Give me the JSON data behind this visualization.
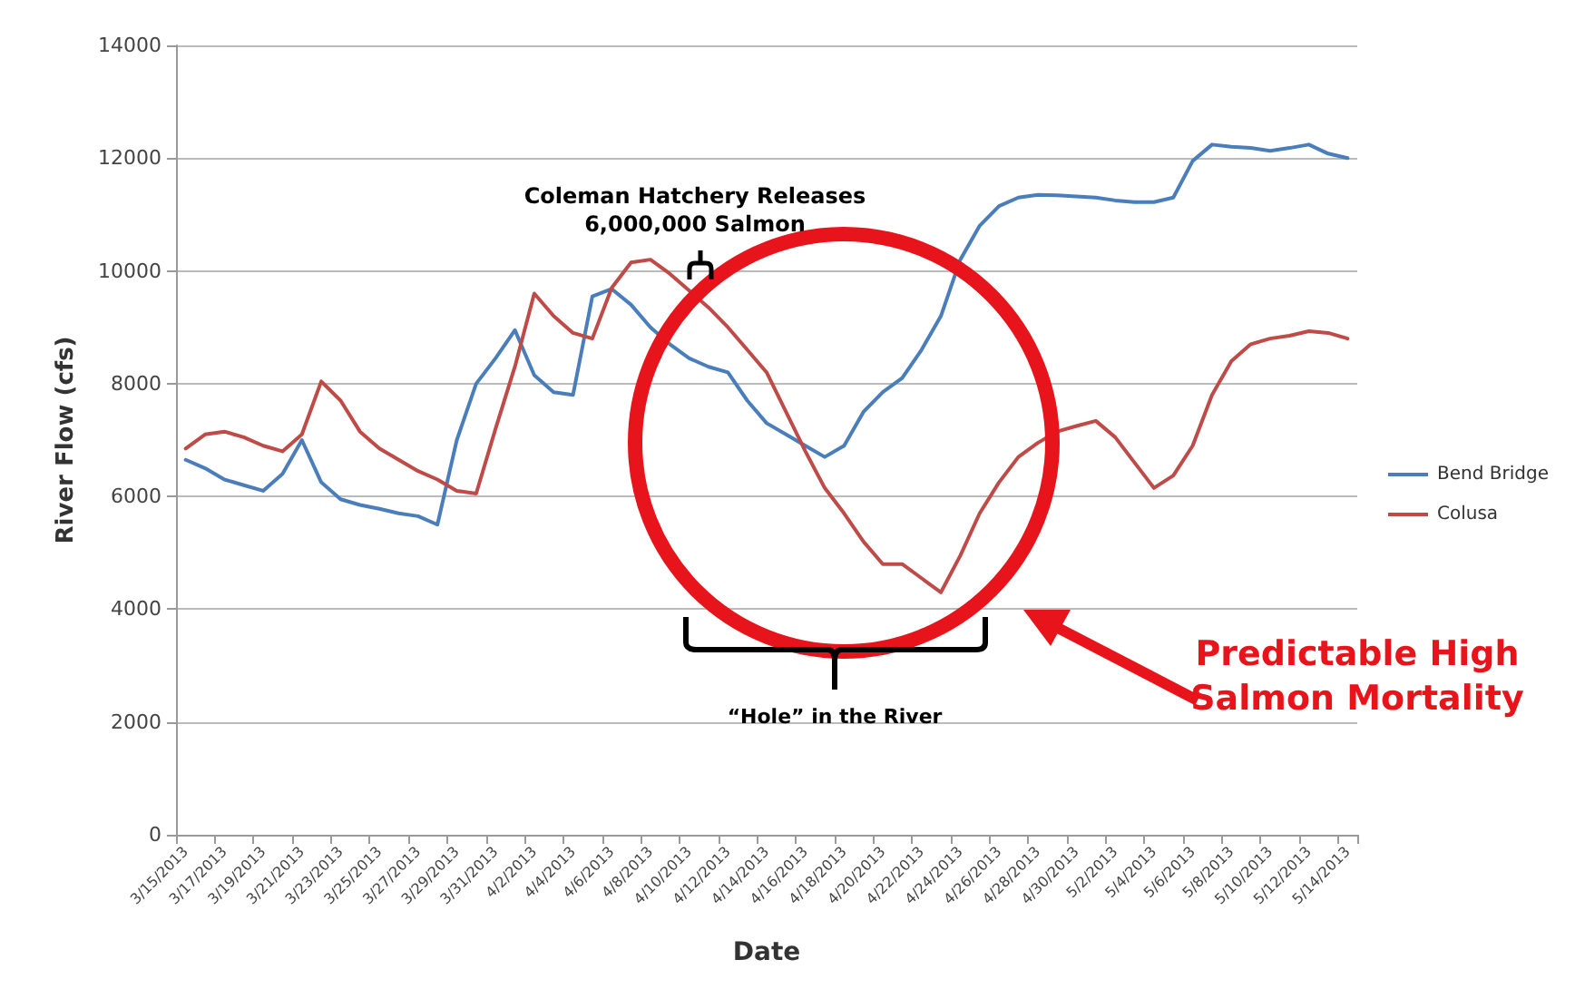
{
  "chart_data": {
    "type": "line",
    "xlabel": "Date",
    "ylabel": "River Flow (cfs)",
    "categories": [
      "3/15/2013",
      null,
      "3/17/2013",
      null,
      "3/19/2013",
      null,
      "3/21/2013",
      null,
      "3/23/2013",
      null,
      "3/25/2013",
      null,
      "3/27/2013",
      null,
      "3/29/2013",
      null,
      "3/31/2013",
      null,
      "4/2/2013",
      null,
      "4/4/2013",
      null,
      "4/6/2013",
      null,
      "4/8/2013",
      null,
      "4/10/2013",
      null,
      "4/12/2013",
      null,
      "4/14/2013",
      null,
      "4/16/2013",
      null,
      "4/18/2013",
      null,
      "4/20/2013",
      null,
      "4/22/2013",
      null,
      "4/24/2013",
      null,
      "4/26/2013",
      null,
      "4/28/2013",
      null,
      "4/30/2013",
      null,
      "5/2/2013",
      null,
      "5/4/2013",
      null,
      "5/6/2013",
      null,
      "5/8/2013",
      null,
      "5/10/2013",
      null,
      "5/12/2013",
      null,
      "5/14/2013"
    ],
    "series": [
      {
        "name": "Bend Bridge",
        "color": "#4a7ebb",
        "values": [
          6650,
          6500,
          6300,
          6200,
          6100,
          6400,
          7000,
          6250,
          5950,
          5850,
          5780,
          5700,
          5650,
          5500,
          7000,
          8000,
          8450,
          8950,
          8150,
          7850,
          7800,
          9550,
          9680,
          9400,
          9000,
          8700,
          8450,
          8300,
          8200,
          7700,
          7300,
          7100,
          6900,
          6700,
          6900,
          7500,
          7850,
          8100,
          8600,
          9200,
          10200,
          10800,
          11150,
          11300,
          11350,
          11340,
          11320,
          11300,
          11250,
          11220,
          11220,
          11300,
          11950,
          12240,
          12200,
          12180,
          12130,
          12180,
          12240,
          12080,
          12000
        ]
      },
      {
        "name": "Colusa",
        "color": "#be4b48",
        "values": [
          6850,
          7100,
          7150,
          7050,
          6900,
          6800,
          7100,
          8040,
          7700,
          7150,
          6850,
          6650,
          6450,
          6300,
          6100,
          6050,
          7200,
          8300,
          9600,
          9200,
          8900,
          8800,
          9700,
          10150,
          10200,
          9950,
          9650,
          9350,
          9000,
          8600,
          8200,
          7500,
          6800,
          6150,
          5700,
          5200,
          4800,
          4800,
          4550,
          4300,
          4950,
          5700,
          6250,
          6700,
          6950,
          7150,
          7250,
          7340,
          7050,
          6600,
          6150,
          6370,
          6900,
          7800,
          8400,
          8700,
          8800,
          8850,
          8930,
          8900,
          8800
        ]
      }
    ],
    "ylim": [
      0,
      14000
    ],
    "yticks": [
      0,
      2000,
      4000,
      6000,
      8000,
      10000,
      12000,
      14000
    ],
    "grid": "y",
    "legend": "right",
    "marker": "none",
    "line_style": "solid",
    "annotations": [
      "Coleman Hatchery Releases\n6,000,000 Salmon",
      "“Hole” in the River",
      "Predictable High\nSalmon Mortality"
    ]
  }
}
